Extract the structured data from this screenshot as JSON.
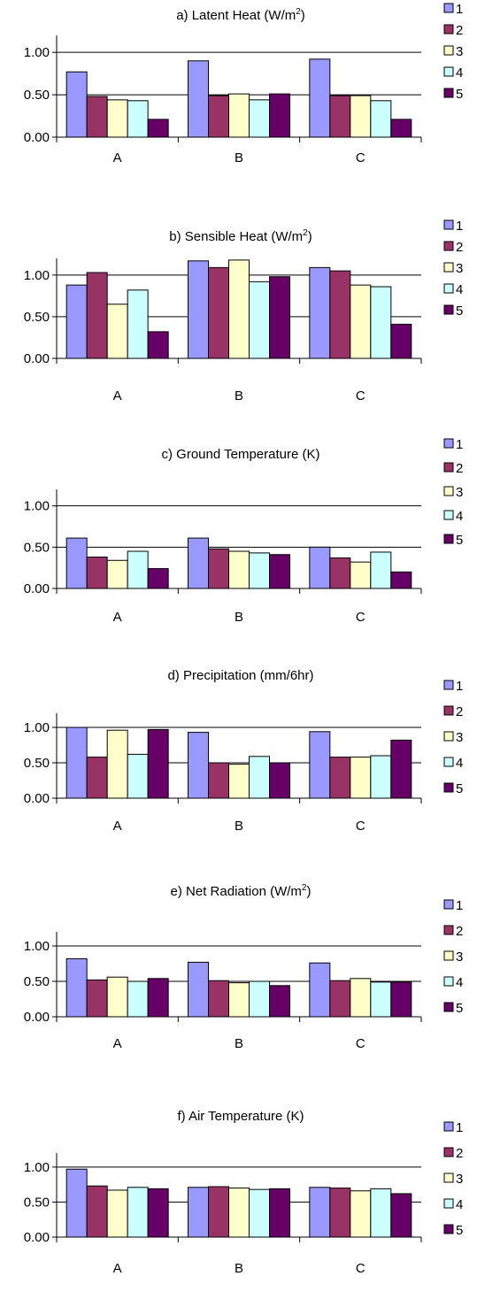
{
  "colors": {
    "series": [
      "#9999ff",
      "#993366",
      "#ffffcc",
      "#ccffff",
      "#660066"
    ],
    "grid": "#000000",
    "bar_stroke": "#000000"
  },
  "chart_data": [
    {
      "type": "bar",
      "title": "a) Latent Heat (W/m",
      "title_sup": "2",
      "title_end": ")",
      "categories": [
        "A",
        "B",
        "C"
      ],
      "ylim": [
        0,
        1
      ],
      "yticks": [
        "0.00",
        "0.50",
        "1.00"
      ],
      "grid": true,
      "legend": "right",
      "series": [
        {
          "name": "1",
          "values": [
            0.77,
            0.9,
            0.92
          ]
        },
        {
          "name": "2",
          "values": [
            0.48,
            0.49,
            0.49
          ]
        },
        {
          "name": "3",
          "values": [
            0.44,
            0.51,
            0.49
          ]
        },
        {
          "name": "4",
          "values": [
            0.43,
            0.44,
            0.43
          ]
        },
        {
          "name": "5",
          "values": [
            0.21,
            0.51,
            0.21
          ]
        }
      ]
    },
    {
      "type": "bar",
      "title": "b) Sensible Heat (W/m",
      "title_sup": "2",
      "title_end": ")",
      "categories": [
        "A",
        "B",
        "C"
      ],
      "ylim": [
        0,
        1.2
      ],
      "yticks": [
        "0.00",
        "0.50",
        "1.00"
      ],
      "grid": true,
      "legend": "right",
      "series": [
        {
          "name": "1",
          "values": [
            0.88,
            1.17,
            1.09
          ]
        },
        {
          "name": "2",
          "values": [
            1.03,
            1.09,
            1.05
          ]
        },
        {
          "name": "3",
          "values": [
            0.65,
            1.18,
            0.88
          ]
        },
        {
          "name": "4",
          "values": [
            0.82,
            0.92,
            0.86
          ]
        },
        {
          "name": "5",
          "values": [
            0.32,
            0.98,
            0.41
          ]
        }
      ]
    },
    {
      "type": "bar",
      "title": "c) Ground Temperature (K)",
      "categories": [
        "A",
        "B",
        "C"
      ],
      "ylim": [
        0,
        1.2
      ],
      "yticks": [
        "0.00",
        "0.50",
        "1.00"
      ],
      "grid": true,
      "legend": "right",
      "series": [
        {
          "name": "1",
          "values": [
            0.61,
            0.61,
            0.5
          ]
        },
        {
          "name": "2",
          "values": [
            0.38,
            0.48,
            0.37
          ]
        },
        {
          "name": "3",
          "values": [
            0.34,
            0.45,
            0.32
          ]
        },
        {
          "name": "4",
          "values": [
            0.45,
            0.43,
            0.44
          ]
        },
        {
          "name": "5",
          "values": [
            0.24,
            0.41,
            0.2
          ]
        }
      ]
    },
    {
      "type": "bar",
      "title": "d) Precipitation (mm/6hr)",
      "categories": [
        "A",
        "B",
        "C"
      ],
      "ylim": [
        0,
        1.0
      ],
      "yticks": [
        "0.00",
        "0.50",
        "1.00"
      ],
      "grid": true,
      "legend": "right",
      "series": [
        {
          "name": "1",
          "values": [
            1.0,
            0.93,
            0.94
          ]
        },
        {
          "name": "2",
          "values": [
            0.58,
            0.5,
            0.58
          ]
        },
        {
          "name": "3",
          "values": [
            0.96,
            0.48,
            0.58
          ]
        },
        {
          "name": "4",
          "values": [
            0.62,
            0.59,
            0.6
          ]
        },
        {
          "name": "5",
          "values": [
            0.97,
            0.5,
            0.82
          ]
        }
      ]
    },
    {
      "type": "bar",
      "title": "e) Net Radiation (W/m",
      "title_sup": "2",
      "title_end": ")",
      "categories": [
        "A",
        "B",
        "C"
      ],
      "ylim": [
        0,
        1.0
      ],
      "yticks": [
        "0.00",
        "0.50",
        "1.00"
      ],
      "grid": true,
      "legend": "right",
      "series": [
        {
          "name": "1",
          "values": [
            0.82,
            0.77,
            0.76
          ]
        },
        {
          "name": "2",
          "values": [
            0.52,
            0.51,
            0.51
          ]
        },
        {
          "name": "3",
          "values": [
            0.56,
            0.48,
            0.54
          ]
        },
        {
          "name": "4",
          "values": [
            0.5,
            0.5,
            0.49
          ]
        },
        {
          "name": "5",
          "values": [
            0.54,
            0.44,
            0.49
          ]
        }
      ]
    },
    {
      "type": "bar",
      "title": "f)  Air Temperature (K)",
      "categories": [
        "A",
        "B",
        "C"
      ],
      "ylim": [
        0,
        1.0
      ],
      "yticks": [
        "0.00",
        "0.50",
        "1.00"
      ],
      "grid": true,
      "legend": "right",
      "series": [
        {
          "name": "1",
          "values": [
            0.97,
            0.71,
            0.71
          ]
        },
        {
          "name": "2",
          "values": [
            0.73,
            0.72,
            0.7
          ]
        },
        {
          "name": "3",
          "values": [
            0.67,
            0.7,
            0.66
          ]
        },
        {
          "name": "4",
          "values": [
            0.71,
            0.68,
            0.69
          ]
        },
        {
          "name": "5",
          "values": [
            0.69,
            0.69,
            0.62
          ]
        }
      ]
    }
  ]
}
